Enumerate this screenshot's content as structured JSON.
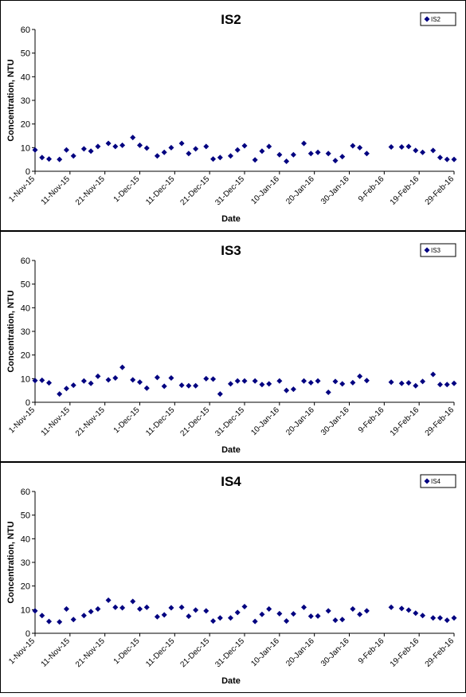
{
  "chart_data": [
    {
      "type": "scatter",
      "title": "IS2",
      "xlabel": "Date",
      "ylabel": "Concentration, NTU",
      "ylim": [
        0,
        60
      ],
      "yticks": [
        "0",
        "10",
        "20",
        "30",
        "40",
        "50",
        "60"
      ],
      "xlim": [
        "2015-11-01",
        "2016-02-29"
      ],
      "xticks": [
        "1-Nov-15",
        "11-Nov-15",
        "21-Nov-15",
        "1-Dec-15",
        "11-Dec-15",
        "21-Dec-15",
        "31-Dec-15",
        "10-Jan-16",
        "20-Jan-16",
        "30-Jan-16",
        "9-Feb-16",
        "19-Feb-16",
        "29-Feb-16"
      ],
      "grid": false,
      "legend_position": "top-right",
      "marker_color": "#000080",
      "series": [
        {
          "name": "IS2",
          "points": [
            {
              "x": "2015-11-01",
              "y": 9
            },
            {
              "x": "2015-11-03",
              "y": 5.8
            },
            {
              "x": "2015-11-05",
              "y": 5.2
            },
            {
              "x": "2015-11-08",
              "y": 5
            },
            {
              "x": "2015-11-10",
              "y": 9
            },
            {
              "x": "2015-11-12",
              "y": 6.5
            },
            {
              "x": "2015-11-15",
              "y": 9.5
            },
            {
              "x": "2015-11-17",
              "y": 8.5
            },
            {
              "x": "2015-11-19",
              "y": 10.5
            },
            {
              "x": "2015-11-22",
              "y": 11.8
            },
            {
              "x": "2015-11-24",
              "y": 10.5
            },
            {
              "x": "2015-11-26",
              "y": 11
            },
            {
              "x": "2015-11-29",
              "y": 14.3
            },
            {
              "x": "2015-12-01",
              "y": 11
            },
            {
              "x": "2015-12-03",
              "y": 9.8
            },
            {
              "x": "2015-12-06",
              "y": 6.5
            },
            {
              "x": "2015-12-08",
              "y": 8
            },
            {
              "x": "2015-12-10",
              "y": 10
            },
            {
              "x": "2015-12-13",
              "y": 11.8
            },
            {
              "x": "2015-12-15",
              "y": 7.5
            },
            {
              "x": "2015-12-17",
              "y": 9.5
            },
            {
              "x": "2015-12-20",
              "y": 10.5
            },
            {
              "x": "2015-12-22",
              "y": 5.2
            },
            {
              "x": "2015-12-24",
              "y": 5.8
            },
            {
              "x": "2015-12-27",
              "y": 6.5
            },
            {
              "x": "2015-12-29",
              "y": 9
            },
            {
              "x": "2015-12-31",
              "y": 10.8
            },
            {
              "x": "2016-01-03",
              "y": 4.8
            },
            {
              "x": "2016-01-05",
              "y": 8.5
            },
            {
              "x": "2016-01-07",
              "y": 10.5
            },
            {
              "x": "2016-01-10",
              "y": 7
            },
            {
              "x": "2016-01-12",
              "y": 4.2
            },
            {
              "x": "2016-01-14",
              "y": 7
            },
            {
              "x": "2016-01-17",
              "y": 11.8
            },
            {
              "x": "2016-01-19",
              "y": 7.5
            },
            {
              "x": "2016-01-21",
              "y": 8
            },
            {
              "x": "2016-01-24",
              "y": 7.5
            },
            {
              "x": "2016-01-26",
              "y": 4.5
            },
            {
              "x": "2016-01-28",
              "y": 6.2
            },
            {
              "x": "2016-01-31",
              "y": 10.8
            },
            {
              "x": "2016-02-02",
              "y": 10
            },
            {
              "x": "2016-02-04",
              "y": 7.5
            },
            {
              "x": "2016-02-11",
              "y": 10.3
            },
            {
              "x": "2016-02-14",
              "y": 10.3
            },
            {
              "x": "2016-02-16",
              "y": 10.5
            },
            {
              "x": "2016-02-18",
              "y": 8.8
            },
            {
              "x": "2016-02-20",
              "y": 8
            },
            {
              "x": "2016-02-23",
              "y": 8.8
            },
            {
              "x": "2016-02-25",
              "y": 5.8
            },
            {
              "x": "2016-02-27",
              "y": 5
            },
            {
              "x": "2016-02-29",
              "y": 5
            }
          ]
        }
      ]
    },
    {
      "type": "scatter",
      "title": "IS3",
      "xlabel": "Date",
      "ylabel": "Concentration, NTU",
      "ylim": [
        0,
        60
      ],
      "yticks": [
        "0",
        "10",
        "20",
        "30",
        "40",
        "50",
        "60"
      ],
      "xlim": [
        "2015-11-01",
        "2016-02-29"
      ],
      "xticks": [
        "1-Nov-15",
        "11-Nov-15",
        "21-Nov-15",
        "1-Dec-15",
        "11-Dec-15",
        "21-Dec-15",
        "31-Dec-15",
        "10-Jan-16",
        "20-Jan-16",
        "30-Jan-16",
        "9-Feb-16",
        "19-Feb-16",
        "29-Feb-16"
      ],
      "grid": false,
      "legend_position": "top-right",
      "marker_color": "#000080",
      "series": [
        {
          "name": "IS3",
          "points": [
            {
              "x": "2015-11-01",
              "y": 9.2
            },
            {
              "x": "2015-11-03",
              "y": 9.3
            },
            {
              "x": "2015-11-05",
              "y": 8.2
            },
            {
              "x": "2015-11-08",
              "y": 3.5
            },
            {
              "x": "2015-11-10",
              "y": 5.8
            },
            {
              "x": "2015-11-12",
              "y": 7.2
            },
            {
              "x": "2015-11-15",
              "y": 9
            },
            {
              "x": "2015-11-17",
              "y": 8
            },
            {
              "x": "2015-11-19",
              "y": 11
            },
            {
              "x": "2015-11-22",
              "y": 9.5
            },
            {
              "x": "2015-11-24",
              "y": 10.3
            },
            {
              "x": "2015-11-26",
              "y": 14.8
            },
            {
              "x": "2015-11-29",
              "y": 9.5
            },
            {
              "x": "2015-12-01",
              "y": 8.5
            },
            {
              "x": "2015-12-03",
              "y": 6
            },
            {
              "x": "2015-12-06",
              "y": 10.5
            },
            {
              "x": "2015-12-08",
              "y": 6.8
            },
            {
              "x": "2015-12-10",
              "y": 10.3
            },
            {
              "x": "2015-12-13",
              "y": 7.2
            },
            {
              "x": "2015-12-15",
              "y": 7
            },
            {
              "x": "2015-12-17",
              "y": 7
            },
            {
              "x": "2015-12-20",
              "y": 10
            },
            {
              "x": "2015-12-22",
              "y": 9.8
            },
            {
              "x": "2015-12-24",
              "y": 3.5
            },
            {
              "x": "2015-12-27",
              "y": 7.8
            },
            {
              "x": "2015-12-29",
              "y": 9
            },
            {
              "x": "2015-12-31",
              "y": 9
            },
            {
              "x": "2016-01-03",
              "y": 9
            },
            {
              "x": "2016-01-05",
              "y": 7.5
            },
            {
              "x": "2016-01-07",
              "y": 7.8
            },
            {
              "x": "2016-01-10",
              "y": 9
            },
            {
              "x": "2016-01-12",
              "y": 5
            },
            {
              "x": "2016-01-14",
              "y": 5.5
            },
            {
              "x": "2016-01-17",
              "y": 9
            },
            {
              "x": "2016-01-19",
              "y": 8.3
            },
            {
              "x": "2016-01-21",
              "y": 9
            },
            {
              "x": "2016-01-24",
              "y": 4.2
            },
            {
              "x": "2016-01-26",
              "y": 8.8
            },
            {
              "x": "2016-01-28",
              "y": 7.8
            },
            {
              "x": "2016-01-31",
              "y": 8.3
            },
            {
              "x": "2016-02-02",
              "y": 11
            },
            {
              "x": "2016-02-04",
              "y": 9.2
            },
            {
              "x": "2016-02-11",
              "y": 8.5
            },
            {
              "x": "2016-02-14",
              "y": 8
            },
            {
              "x": "2016-02-16",
              "y": 8.2
            },
            {
              "x": "2016-02-18",
              "y": 7
            },
            {
              "x": "2016-02-20",
              "y": 8.8
            },
            {
              "x": "2016-02-23",
              "y": 11.8
            },
            {
              "x": "2016-02-25",
              "y": 7.5
            },
            {
              "x": "2016-02-27",
              "y": 7.5
            },
            {
              "x": "2016-02-29",
              "y": 8
            }
          ]
        }
      ]
    },
    {
      "type": "scatter",
      "title": "IS4",
      "xlabel": "Date",
      "ylabel": "Concentration, NTU",
      "ylim": [
        0,
        60
      ],
      "yticks": [
        "0",
        "10",
        "20",
        "30",
        "40",
        "50",
        "60"
      ],
      "xlim": [
        "2015-11-01",
        "2016-02-29"
      ],
      "xticks": [
        "1-Nov-15",
        "11-Nov-15",
        "21-Nov-15",
        "1-Dec-15",
        "11-Dec-15",
        "21-Dec-15",
        "31-Dec-15",
        "10-Jan-16",
        "20-Jan-16",
        "30-Jan-16",
        "9-Feb-16",
        "19-Feb-16",
        "29-Feb-16"
      ],
      "grid": false,
      "legend_position": "top-right",
      "marker_color": "#000080",
      "series": [
        {
          "name": "IS4",
          "points": [
            {
              "x": "2015-11-01",
              "y": 9.5
            },
            {
              "x": "2015-11-03",
              "y": 7.5
            },
            {
              "x": "2015-11-05",
              "y": 5
            },
            {
              "x": "2015-11-08",
              "y": 4.8
            },
            {
              "x": "2015-11-10",
              "y": 10.3
            },
            {
              "x": "2015-11-12",
              "y": 5.8
            },
            {
              "x": "2015-11-15",
              "y": 7.5
            },
            {
              "x": "2015-11-17",
              "y": 9.2
            },
            {
              "x": "2015-11-19",
              "y": 10.3
            },
            {
              "x": "2015-11-22",
              "y": 14
            },
            {
              "x": "2015-11-24",
              "y": 11
            },
            {
              "x": "2015-11-26",
              "y": 10.8
            },
            {
              "x": "2015-11-29",
              "y": 13.5
            },
            {
              "x": "2015-12-01",
              "y": 10.3
            },
            {
              "x": "2015-12-03",
              "y": 11
            },
            {
              "x": "2015-12-06",
              "y": 7
            },
            {
              "x": "2015-12-08",
              "y": 7.8
            },
            {
              "x": "2015-12-10",
              "y": 10.8
            },
            {
              "x": "2015-12-13",
              "y": 11
            },
            {
              "x": "2015-12-15",
              "y": 7.2
            },
            {
              "x": "2015-12-17",
              "y": 9.8
            },
            {
              "x": "2015-12-20",
              "y": 9.5
            },
            {
              "x": "2015-12-22",
              "y": 5.2
            },
            {
              "x": "2015-12-24",
              "y": 6.5
            },
            {
              "x": "2015-12-27",
              "y": 6.5
            },
            {
              "x": "2015-12-29",
              "y": 8.8
            },
            {
              "x": "2015-12-31",
              "y": 11.3
            },
            {
              "x": "2016-01-03",
              "y": 5
            },
            {
              "x": "2016-01-05",
              "y": 8
            },
            {
              "x": "2016-01-07",
              "y": 10.3
            },
            {
              "x": "2016-01-10",
              "y": 8.3
            },
            {
              "x": "2016-01-12",
              "y": 5.2
            },
            {
              "x": "2016-01-14",
              "y": 8.2
            },
            {
              "x": "2016-01-17",
              "y": 11
            },
            {
              "x": "2016-01-19",
              "y": 7.2
            },
            {
              "x": "2016-01-21",
              "y": 7.3
            },
            {
              "x": "2016-01-24",
              "y": 9.5
            },
            {
              "x": "2016-01-26",
              "y": 5.5
            },
            {
              "x": "2016-01-28",
              "y": 5.8
            },
            {
              "x": "2016-01-31",
              "y": 10.3
            },
            {
              "x": "2016-02-02",
              "y": 8
            },
            {
              "x": "2016-02-04",
              "y": 9.5
            },
            {
              "x": "2016-02-11",
              "y": 11
            },
            {
              "x": "2016-02-14",
              "y": 10.5
            },
            {
              "x": "2016-02-16",
              "y": 9.8
            },
            {
              "x": "2016-02-18",
              "y": 8.5
            },
            {
              "x": "2016-02-20",
              "y": 7.5
            },
            {
              "x": "2016-02-23",
              "y": 6.5
            },
            {
              "x": "2016-02-25",
              "y": 6.5
            },
            {
              "x": "2016-02-27",
              "y": 5.5
            },
            {
              "x": "2016-02-29",
              "y": 6.5
            }
          ]
        }
      ]
    }
  ]
}
